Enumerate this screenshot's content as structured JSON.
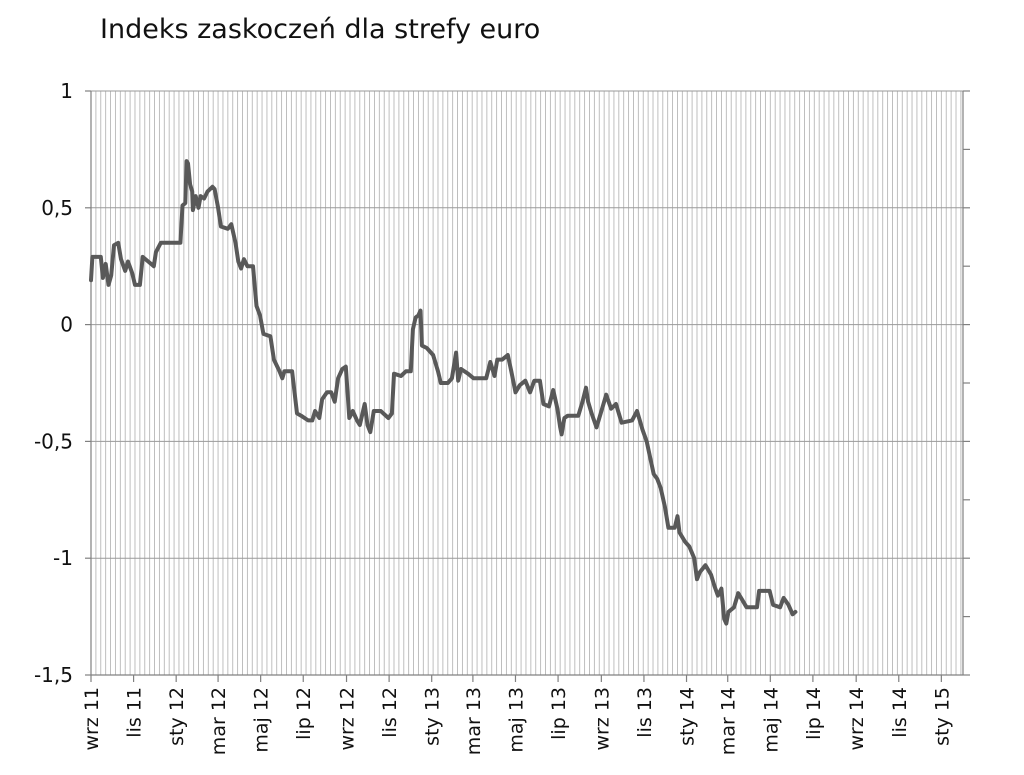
{
  "chart_data": {
    "type": "line",
    "title": "Indeks zaskoczeń dla strefy euro",
    "xlabel": "",
    "ylabel": "",
    "ylim": [
      -1.5,
      1
    ],
    "y_ticks": [
      1,
      0.5,
      0,
      -0.5,
      -1,
      -1.5
    ],
    "y_tick_labels": [
      "1",
      "0,5",
      "0",
      "-0,5",
      "-1",
      "-1,5"
    ],
    "x_tick_labels": [
      "wrz 11",
      "lis 11",
      "sty 12",
      "mar 12",
      "maj 12",
      "lip 12",
      "wrz 12",
      "lis 12",
      "sty 13",
      "mar 13",
      "maj 13",
      "lip 13",
      "wrz 13",
      "lis 13",
      "sty 14",
      "mar 14",
      "maj 14",
      "lip 14",
      "wrz 14",
      "lis 14",
      "sty 15"
    ],
    "x_range": [
      "2011-09",
      "2015-02"
    ],
    "grid": "vertical weekly lines, horizontal lines at major y ticks",
    "line_color": "#595959",
    "series": [
      {
        "values": [
          [
            "2011-09-01",
            0.19
          ],
          [
            "2011-09-03",
            0.29
          ],
          [
            "2011-09-15",
            0.29
          ],
          [
            "2011-09-18",
            0.2
          ],
          [
            "2011-09-22",
            0.26
          ],
          [
            "2011-09-26",
            0.17
          ],
          [
            "2011-09-30",
            0.21
          ],
          [
            "2011-10-04",
            0.34
          ],
          [
            "2011-10-10",
            0.35
          ],
          [
            "2011-10-14",
            0.28
          ],
          [
            "2011-10-20",
            0.23
          ],
          [
            "2011-10-24",
            0.27
          ],
          [
            "2011-10-30",
            0.22
          ],
          [
            "2011-11-03",
            0.17
          ],
          [
            "2011-11-10",
            0.17
          ],
          [
            "2011-11-14",
            0.29
          ],
          [
            "2011-11-22",
            0.27
          ],
          [
            "2011-11-30",
            0.25
          ],
          [
            "2011-12-03",
            0.31
          ],
          [
            "2011-12-10",
            0.35
          ],
          [
            "2011-12-26",
            0.35
          ],
          [
            "2012-01-07",
            0.35
          ],
          [
            "2012-01-10",
            0.51
          ],
          [
            "2012-01-14",
            0.52
          ],
          [
            "2012-01-16",
            0.7
          ],
          [
            "2012-01-18",
            0.69
          ],
          [
            "2012-01-21",
            0.6
          ],
          [
            "2012-01-24",
            0.57
          ],
          [
            "2012-01-25",
            0.49
          ],
          [
            "2012-01-29",
            0.55
          ],
          [
            "2012-02-02",
            0.5
          ],
          [
            "2012-02-05",
            0.55
          ],
          [
            "2012-02-10",
            0.54
          ],
          [
            "2012-02-15",
            0.57
          ],
          [
            "2012-02-22",
            0.59
          ],
          [
            "2012-02-25",
            0.58
          ],
          [
            "2012-03-01",
            0.5
          ],
          [
            "2012-03-05",
            0.42
          ],
          [
            "2012-03-15",
            0.41
          ],
          [
            "2012-03-20",
            0.43
          ],
          [
            "2012-03-26",
            0.35
          ],
          [
            "2012-03-30",
            0.27
          ],
          [
            "2012-04-03",
            0.24
          ],
          [
            "2012-04-07",
            0.28
          ],
          [
            "2012-04-12",
            0.25
          ],
          [
            "2012-04-20",
            0.25
          ],
          [
            "2012-04-25",
            0.08
          ],
          [
            "2012-04-30",
            0.04
          ],
          [
            "2012-05-05",
            -0.04
          ],
          [
            "2012-05-15",
            -0.05
          ],
          [
            "2012-05-20",
            -0.15
          ],
          [
            "2012-05-28",
            -0.2
          ],
          [
            "2012-06-01",
            -0.23
          ],
          [
            "2012-06-04",
            -0.2
          ],
          [
            "2012-06-15",
            -0.2
          ],
          [
            "2012-06-22",
            -0.38
          ],
          [
            "2012-06-28",
            -0.39
          ],
          [
            "2012-07-08",
            -0.41
          ],
          [
            "2012-07-14",
            -0.41
          ],
          [
            "2012-07-18",
            -0.37
          ],
          [
            "2012-07-24",
            -0.4
          ],
          [
            "2012-07-28",
            -0.32
          ],
          [
            "2012-08-04",
            -0.29
          ],
          [
            "2012-08-10",
            -0.29
          ],
          [
            "2012-08-15",
            -0.33
          ],
          [
            "2012-08-20",
            -0.23
          ],
          [
            "2012-08-26",
            -0.19
          ],
          [
            "2012-08-31",
            -0.18
          ],
          [
            "2012-09-05",
            -0.4
          ],
          [
            "2012-09-10",
            -0.37
          ],
          [
            "2012-09-16",
            -0.41
          ],
          [
            "2012-09-20",
            -0.43
          ],
          [
            "2012-09-27",
            -0.34
          ],
          [
            "2012-10-01",
            -0.43
          ],
          [
            "2012-10-05",
            -0.46
          ],
          [
            "2012-10-10",
            -0.37
          ],
          [
            "2012-10-20",
            -0.37
          ],
          [
            "2012-10-31",
            -0.4
          ],
          [
            "2012-11-05",
            -0.38
          ],
          [
            "2012-11-08",
            -0.21
          ],
          [
            "2012-11-18",
            -0.22
          ],
          [
            "2012-11-25",
            -0.2
          ],
          [
            "2012-12-02",
            -0.2
          ],
          [
            "2012-12-05",
            -0.02
          ],
          [
            "2012-12-09",
            0.03
          ],
          [
            "2012-12-13",
            0.04
          ],
          [
            "2012-12-16",
            0.06
          ],
          [
            "2012-12-18",
            -0.09
          ],
          [
            "2012-12-25",
            -0.1
          ],
          [
            "2013-01-03",
            -0.13
          ],
          [
            "2013-01-10",
            -0.2
          ],
          [
            "2013-01-14",
            -0.25
          ],
          [
            "2013-01-24",
            -0.25
          ],
          [
            "2013-01-30",
            -0.23
          ],
          [
            "2013-02-05",
            -0.12
          ],
          [
            "2013-02-08",
            -0.24
          ],
          [
            "2013-02-12",
            -0.19
          ],
          [
            "2013-02-22",
            -0.21
          ],
          [
            "2013-03-02",
            -0.23
          ],
          [
            "2013-03-20",
            -0.23
          ],
          [
            "2013-03-26",
            -0.16
          ],
          [
            "2013-04-01",
            -0.22
          ],
          [
            "2013-04-05",
            -0.15
          ],
          [
            "2013-04-12",
            -0.15
          ],
          [
            "2013-04-20",
            -0.13
          ],
          [
            "2013-04-25",
            -0.2
          ],
          [
            "2013-05-01",
            -0.29
          ],
          [
            "2013-05-07",
            -0.26
          ],
          [
            "2013-05-15",
            -0.24
          ],
          [
            "2013-05-22",
            -0.29
          ],
          [
            "2013-05-28",
            -0.24
          ],
          [
            "2013-06-05",
            -0.24
          ],
          [
            "2013-06-10",
            -0.34
          ],
          [
            "2013-06-18",
            -0.35
          ],
          [
            "2013-06-24",
            -0.28
          ],
          [
            "2013-06-30",
            -0.36
          ],
          [
            "2013-07-04",
            -0.44
          ],
          [
            "2013-07-06",
            -0.47
          ],
          [
            "2013-07-10",
            -0.4
          ],
          [
            "2013-07-15",
            -0.39
          ],
          [
            "2013-07-30",
            -0.39
          ],
          [
            "2013-08-05",
            -0.33
          ],
          [
            "2013-08-10",
            -0.27
          ],
          [
            "2013-08-13",
            -0.33
          ],
          [
            "2013-08-18",
            -0.38
          ],
          [
            "2013-08-25",
            -0.44
          ],
          [
            "2013-09-02",
            -0.36
          ],
          [
            "2013-09-08",
            -0.3
          ],
          [
            "2013-09-15",
            -0.36
          ],
          [
            "2013-09-22",
            -0.34
          ],
          [
            "2013-09-30",
            -0.42
          ],
          [
            "2013-10-15",
            -0.41
          ],
          [
            "2013-10-22",
            -0.37
          ],
          [
            "2013-10-26",
            -0.41
          ],
          [
            "2013-10-30",
            -0.45
          ],
          [
            "2013-11-05",
            -0.5
          ],
          [
            "2013-11-10",
            -0.57
          ],
          [
            "2013-11-15",
            -0.64
          ],
          [
            "2013-11-20",
            -0.66
          ],
          [
            "2013-11-25",
            -0.7
          ],
          [
            "2013-12-01",
            -0.78
          ],
          [
            "2013-12-06",
            -0.87
          ],
          [
            "2013-12-15",
            -0.87
          ],
          [
            "2013-12-19",
            -0.82
          ],
          [
            "2013-12-22",
            -0.89
          ],
          [
            "2013-12-30",
            -0.93
          ],
          [
            "2014-01-05",
            -0.95
          ],
          [
            "2014-01-12",
            -1.0
          ],
          [
            "2014-01-16",
            -1.09
          ],
          [
            "2014-01-20",
            -1.06
          ],
          [
            "2014-01-28",
            -1.03
          ],
          [
            "2014-02-05",
            -1.07
          ],
          [
            "2014-02-10",
            -1.12
          ],
          [
            "2014-02-15",
            -1.16
          ],
          [
            "2014-02-20",
            -1.13
          ],
          [
            "2014-02-24",
            -1.26
          ],
          [
            "2014-02-27",
            -1.28
          ],
          [
            "2014-03-02",
            -1.23
          ],
          [
            "2014-03-10",
            -1.21
          ],
          [
            "2014-03-16",
            -1.15
          ],
          [
            "2014-03-22",
            -1.18
          ],
          [
            "2014-03-28",
            -1.21
          ],
          [
            "2014-04-12",
            -1.21
          ],
          [
            "2014-04-15",
            -1.14
          ],
          [
            "2014-04-30",
            -1.14
          ],
          [
            "2014-05-05",
            -1.2
          ],
          [
            "2014-05-15",
            -1.21
          ],
          [
            "2014-05-20",
            -1.17
          ],
          [
            "2014-05-27",
            -1.2
          ],
          [
            "2014-06-02",
            -1.24
          ],
          [
            "2014-06-06",
            -1.23
          ]
        ]
      }
    ]
  }
}
